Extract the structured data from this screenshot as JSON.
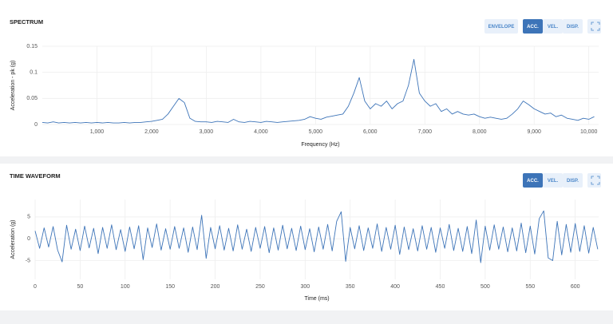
{
  "chart_data": [
    {
      "type": "line",
      "title": "SPECTRUM",
      "x_label": "Frequency (Hz)",
      "y_label": "Acceleration - pk (g)",
      "color": "#3d74b8",
      "grid": true,
      "xlim": [
        0,
        10180
      ],
      "ylim": [
        0,
        0.15
      ],
      "xticks": [
        {
          "value": 1000,
          "label": "1,000"
        },
        {
          "value": 2000,
          "label": "2,000"
        },
        {
          "value": 3000,
          "label": "3,000"
        },
        {
          "value": 4000,
          "label": "4,000"
        },
        {
          "value": 5000,
          "label": "5,000"
        },
        {
          "value": 6000,
          "label": "6,000"
        },
        {
          "value": 7000,
          "label": "7,000"
        },
        {
          "value": 8000,
          "label": "8,000"
        },
        {
          "value": 9000,
          "label": "9,000"
        },
        {
          "value": 10000,
          "label": "10,000"
        }
      ],
      "yticks": [
        0,
        0.05,
        0.1,
        0.15
      ],
      "x": [
        0,
        100,
        200,
        300,
        400,
        500,
        600,
        700,
        800,
        900,
        1000,
        1100,
        1200,
        1300,
        1400,
        1500,
        1600,
        1700,
        1800,
        1900,
        2000,
        2100,
        2200,
        2300,
        2400,
        2500,
        2600,
        2700,
        2800,
        2900,
        3000,
        3100,
        3200,
        3300,
        3400,
        3500,
        3600,
        3700,
        3800,
        3900,
        4000,
        4100,
        4200,
        4300,
        4400,
        4500,
        4600,
        4700,
        4800,
        4900,
        5000,
        5100,
        5200,
        5300,
        5400,
        5500,
        5600,
        5700,
        5800,
        5900,
        6000,
        6100,
        6200,
        6300,
        6400,
        6500,
        6600,
        6700,
        6800,
        6900,
        7000,
        7100,
        7200,
        7300,
        7400,
        7500,
        7600,
        7700,
        7800,
        7900,
        8000,
        8100,
        8200,
        8300,
        8400,
        8500,
        8600,
        8700,
        8800,
        8900,
        9000,
        9100,
        9200,
        9300,
        9400,
        9500,
        9600,
        9700,
        9800,
        9900,
        10000,
        10100
      ],
      "values": [
        0.004,
        0.003,
        0.005,
        0.003,
        0.004,
        0.003,
        0.004,
        0.003,
        0.004,
        0.003,
        0.004,
        0.003,
        0.004,
        0.003,
        0.003,
        0.004,
        0.003,
        0.004,
        0.004,
        0.005,
        0.006,
        0.008,
        0.01,
        0.02,
        0.035,
        0.05,
        0.042,
        0.012,
        0.006,
        0.005,
        0.005,
        0.004,
        0.006,
        0.005,
        0.004,
        0.01,
        0.005,
        0.004,
        0.006,
        0.005,
        0.004,
        0.006,
        0.005,
        0.004,
        0.005,
        0.006,
        0.007,
        0.008,
        0.01,
        0.015,
        0.012,
        0.01,
        0.014,
        0.016,
        0.018,
        0.02,
        0.035,
        0.06,
        0.09,
        0.045,
        0.03,
        0.04,
        0.035,
        0.045,
        0.03,
        0.04,
        0.045,
        0.075,
        0.125,
        0.06,
        0.045,
        0.035,
        0.04,
        0.025,
        0.03,
        0.02,
        0.025,
        0.02,
        0.018,
        0.02,
        0.015,
        0.012,
        0.014,
        0.012,
        0.01,
        0.012,
        0.02,
        0.03,
        0.045,
        0.038,
        0.03,
        0.025,
        0.02,
        0.022,
        0.015,
        0.018,
        0.012,
        0.01,
        0.008,
        0.012,
        0.01,
        0.015
      ]
    },
    {
      "type": "line",
      "title": "TIME WAVEFORM",
      "x_label": "Time (ms)",
      "y_label": "Acceleration (g)",
      "color": "#3d74b8",
      "grid": true,
      "xlim": [
        0,
        626
      ],
      "ylim": [
        -9.3,
        9
      ],
      "xticks": [
        0,
        50,
        100,
        150,
        200,
        250,
        300,
        350,
        400,
        450,
        500,
        550,
        600
      ],
      "yticks": [
        -5,
        0,
        5
      ],
      "x": [
        0,
        5,
        10,
        15,
        20,
        25,
        30,
        35,
        40,
        45,
        50,
        55,
        60,
        65,
        70,
        75,
        80,
        85,
        90,
        95,
        100,
        105,
        110,
        115,
        120,
        125,
        130,
        135,
        140,
        145,
        150,
        155,
        160,
        165,
        170,
        175,
        180,
        185,
        190,
        195,
        200,
        205,
        210,
        215,
        220,
        225,
        230,
        235,
        240,
        245,
        250,
        255,
        260,
        265,
        270,
        275,
        280,
        285,
        290,
        295,
        300,
        305,
        310,
        315,
        320,
        325,
        330,
        335,
        340,
        345,
        350,
        355,
        360,
        365,
        370,
        375,
        380,
        385,
        390,
        395,
        400,
        405,
        410,
        415,
        420,
        425,
        430,
        435,
        440,
        445,
        450,
        455,
        460,
        465,
        470,
        475,
        480,
        485,
        490,
        495,
        500,
        505,
        510,
        515,
        520,
        525,
        530,
        535,
        540,
        545,
        550,
        555,
        560,
        565,
        570,
        575,
        580,
        585,
        590,
        595,
        600,
        605,
        610,
        615,
        620,
        625
      ],
      "values": [
        1.8,
        -2.2,
        2.5,
        -1.9,
        2.8,
        -2.6,
        -5.3,
        3.1,
        -2.4,
        2.2,
        -2.7,
        2.9,
        -2.1,
        2.4,
        -3.4,
        2.6,
        -2.2,
        3.2,
        -2.5,
        2.1,
        -2.9,
        2.7,
        -2.3,
        3.0,
        -4.8,
        2.5,
        -2.0,
        3.4,
        -2.6,
        2.3,
        -2.4,
        2.8,
        -2.2,
        2.5,
        -3.1,
        2.7,
        -2.5,
        5.4,
        -4.5,
        2.6,
        -2.3,
        3.0,
        -2.6,
        2.4,
        -2.8,
        3.2,
        -2.4,
        2.2,
        -2.9,
        2.6,
        -2.2,
        2.8,
        -3.2,
        2.5,
        -2.6,
        3.1,
        -2.3,
        2.4,
        -2.7,
        2.9,
        -2.5,
        2.3,
        -3.0,
        2.7,
        -2.4,
        3.3,
        -2.8,
        4.0,
        6.2,
        -5.2,
        2.6,
        -2.3,
        3.0,
        -2.7,
        2.5,
        -2.2,
        3.4,
        -2.9,
        2.6,
        -2.4,
        3.1,
        -3.6,
        2.7,
        -2.5,
        2.3,
        -2.8,
        3.0,
        -2.4,
        2.6,
        -3.1,
        2.5,
        -2.2,
        3.3,
        -2.7,
        2.4,
        -2.9,
        2.8,
        -3.4,
        4.3,
        -5.5,
        2.9,
        -2.6,
        3.2,
        -2.4,
        2.7,
        -3.0,
        2.5,
        -2.8,
        3.6,
        -3.2,
        2.9,
        -3.5,
        4.6,
        6.4,
        -4.4,
        -5.0,
        4.0,
        -3.7,
        3.3,
        -3.1,
        3.5,
        -2.9,
        3.0,
        -3.3,
        2.6,
        -2.4
      ]
    }
  ],
  "ui": {
    "spectrum_buttons": [
      "ENVELOPE",
      "ACC.",
      "VEL.",
      "DISP."
    ],
    "waveform_buttons": [
      "ACC.",
      "VEL.",
      "DISP."
    ]
  }
}
